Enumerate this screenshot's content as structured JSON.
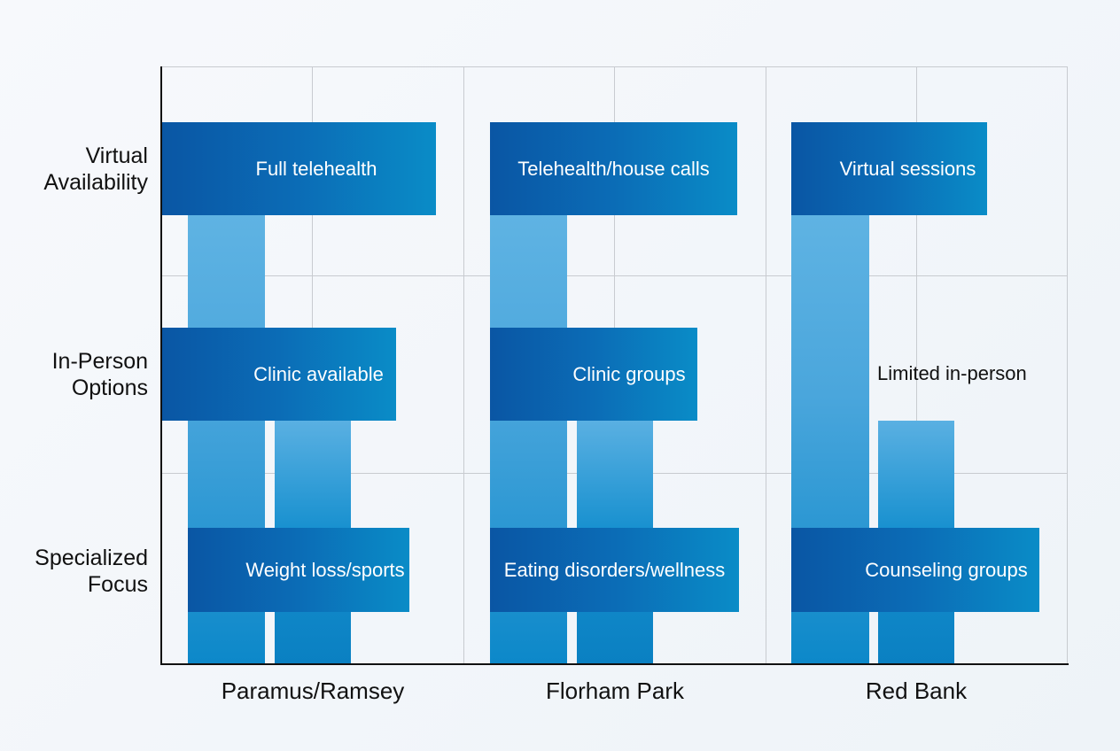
{
  "chart_data": {
    "type": "bar",
    "title": "",
    "categories": [
      "Paramus/Ramsey",
      "Florham Park",
      "Red Bank"
    ],
    "row_labels": [
      "Virtual Availability",
      "In-Person Options",
      "Specialized Focus"
    ],
    "row_label_lines": [
      [
        "Virtual",
        "Availability"
      ],
      [
        "In-Person",
        "Options"
      ],
      [
        "Specialized",
        "Focus"
      ]
    ],
    "cells": {
      "Paramus/Ramsey": [
        "Full telehealth",
        "Clinic available",
        "Weight loss/sports"
      ],
      "Florham Park": [
        "Telehealth/house calls",
        "Clinic groups",
        "Eating disorders/wellness"
      ],
      "Red Bank": [
        "Virtual sessions",
        "Limited in-person",
        "Counseling groups"
      ]
    },
    "colors": {
      "bar_dark": "#0a56a4",
      "bar_light": "#0a8cc7",
      "column_light": "#5fb3e3"
    },
    "grid": true
  }
}
